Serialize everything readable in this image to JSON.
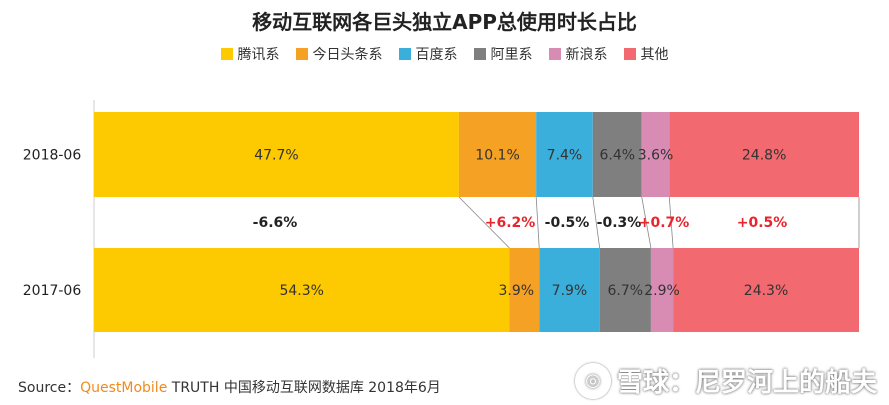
{
  "chart_data": {
    "type": "bar",
    "orientation": "horizontal-stacked",
    "title": "移动互联网各巨头独立APP总使用时长占比",
    "categories": [
      "2018-06",
      "2017-06"
    ],
    "series": [
      {
        "name": "腾讯系",
        "color": "#fdc900",
        "values": [
          47.7,
          54.3
        ],
        "labels": [
          "47.7%",
          "54.3%"
        ],
        "change": "-6.6%",
        "change_color": "#222222"
      },
      {
        "name": "今日头条系",
        "color": "#f5a124",
        "values": [
          10.1,
          3.9
        ],
        "labels": [
          "10.1%",
          "3.9%"
        ],
        "change": "+6.2%",
        "change_color": "#e8252d"
      },
      {
        "name": "百度系",
        "color": "#3bafdc",
        "values": [
          7.4,
          7.9
        ],
        "labels": [
          "7.4%",
          "7.9%"
        ],
        "change": "-0.5%",
        "change_color": "#222222"
      },
      {
        "name": "阿里系",
        "color": "#7f7f7f",
        "values": [
          6.4,
          6.7
        ],
        "labels": [
          "6.4%",
          "6.7%"
        ],
        "change": "-0.3%",
        "change_color": "#222222"
      },
      {
        "name": "新浪系",
        "color": "#d98cb3",
        "values": [
          3.6,
          2.9
        ],
        "labels": [
          "3.6%",
          "2.9%"
        ],
        "change": "+0.7%",
        "change_color": "#e8252d"
      },
      {
        "name": "其他",
        "color": "#f2696f",
        "values": [
          24.8,
          24.3
        ],
        "labels": [
          "24.8%",
          "24.3%"
        ],
        "change": "+0.5%",
        "change_color": "#e8252d"
      }
    ],
    "xlim": [
      0,
      100
    ],
    "legend_position": "top-center",
    "grid": false
  },
  "source": {
    "label": "Source：",
    "brand": "QuestMobile",
    "rest": " TRUTH 中国移动互联网数据库 2018年6月"
  },
  "watermark": {
    "text": "雪球：尼罗河上的船夫"
  }
}
